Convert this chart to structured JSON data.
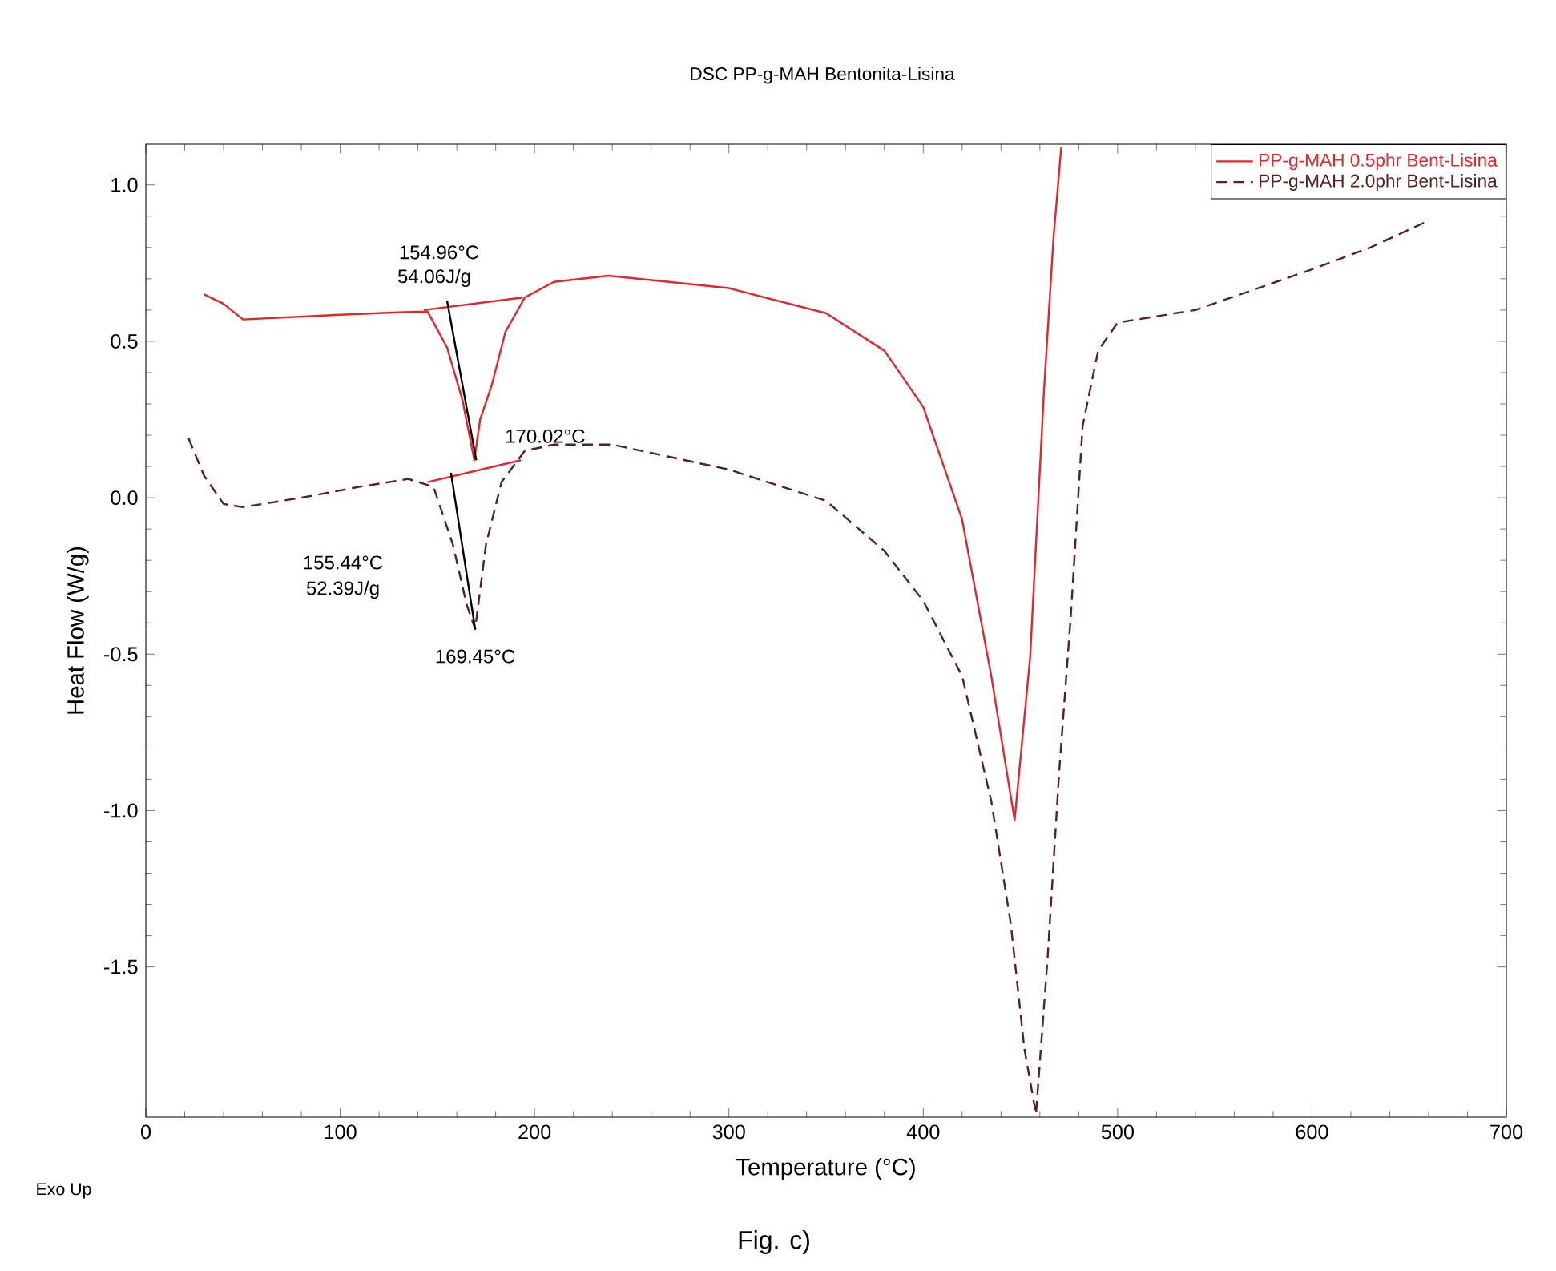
{
  "chart_data": {
    "type": "line",
    "title": "DSC PP-g-MAH Bentonita-Lisina",
    "xlabel": "Temperature (°C)",
    "ylabel": "Heat Flow (W/g)",
    "xlim": [
      0,
      700
    ],
    "ylim": [
      -1.98,
      1.13
    ],
    "xticks": [
      0,
      100,
      200,
      300,
      400,
      500,
      600,
      700
    ],
    "yticks": [
      {
        "value": 1.0,
        "label": "1.0"
      },
      {
        "value": 0.5,
        "label": "0.5"
      },
      {
        "value": 0.0,
        "label": "0.0"
      },
      {
        "value": -0.5,
        "label": "-0.5"
      },
      {
        "value": -1.0,
        "label": "-1.0"
      },
      {
        "value": -1.5,
        "label": "-1.5"
      }
    ],
    "legend": "top right",
    "marker": "none",
    "grid": false,
    "series": [
      {
        "name": "PP-g-MAH 0.5phr Bent-Lisina",
        "color": "#e8242a",
        "line_style": "solid",
        "x": [
          30,
          40,
          50,
          100,
          140,
          145,
          155,
          163,
          169,
          172,
          178,
          185,
          195,
          210,
          238,
          300,
          350,
          380,
          400,
          420,
          435,
          447,
          455,
          462,
          467,
          471
        ],
        "values": [
          0.65,
          0.62,
          0.57,
          0.585,
          0.595,
          0.595,
          0.48,
          0.31,
          0.12,
          0.25,
          0.36,
          0.53,
          0.64,
          0.69,
          0.71,
          0.67,
          0.59,
          0.47,
          0.29,
          -0.07,
          -0.57,
          -1.03,
          -0.51,
          0.33,
          0.83,
          1.12
        ]
      },
      {
        "name": "PP-g-MAH 2.0phr Bent-Lisina",
        "color": "#5c1f1f",
        "line_style": "dashed",
        "x": [
          22,
          30,
          40,
          50,
          80,
          110,
          135,
          148,
          158,
          165,
          169.45,
          175,
          183,
          195,
          210,
          240,
          300,
          350,
          380,
          400,
          420,
          435,
          445,
          452,
          458,
          464,
          470,
          476,
          482,
          490,
          500,
          540,
          600,
          630,
          658
        ],
        "values": [
          0.19,
          0.07,
          -0.02,
          -0.03,
          0.0,
          0.035,
          0.06,
          0.035,
          -0.15,
          -0.34,
          -0.42,
          -0.15,
          0.05,
          0.15,
          0.17,
          0.17,
          0.09,
          -0.01,
          -0.17,
          -0.33,
          -0.57,
          -0.97,
          -1.36,
          -1.76,
          -1.97,
          -1.47,
          -0.87,
          -0.37,
          0.23,
          0.47,
          0.56,
          0.6,
          0.73,
          0.8,
          0.88
        ]
      },
      {
        "color": "#e8242a",
        "line_style": "solid",
        "x": [
          143,
          194
        ],
        "values": [
          0.6,
          0.64
        ]
      },
      {
        "color": "#e8242a",
        "line_style": "solid",
        "x": [
          145,
          193
        ],
        "values": [
          0.05,
          0.12
        ]
      },
      {
        "color": "#000000",
        "line_style": "solid",
        "x": [
          155,
          170
        ],
        "values": [
          0.63,
          0.12
        ]
      },
      {
        "color": "#000000",
        "line_style": "solid",
        "x": [
          157,
          169.45
        ],
        "values": [
          0.08,
          -0.42
        ]
      }
    ],
    "annotations": [
      {
        "text": "154.96°C",
        "x": 155,
        "y": 0.6
      },
      {
        "text": "54.06J/g",
        "x": 155,
        "y": 0.6
      },
      {
        "text": "170.02°C",
        "x": 170,
        "y": 0.12
      },
      "155.44°C",
      "52.39J/g",
      {
        "text": "169.45°C",
        "x": 169.45,
        "y": -0.42
      },
      "Exo Up",
      "Fig. c)"
    ]
  }
}
